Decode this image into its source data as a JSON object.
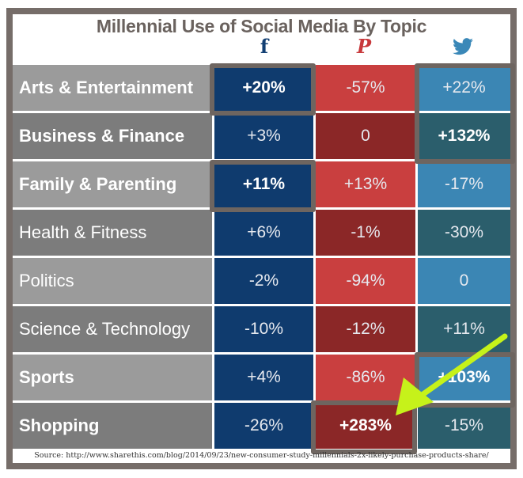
{
  "chart_data": {
    "type": "table",
    "title": "Millennial Use of Social Media By Topic",
    "columns": [
      {
        "name": "Facebook",
        "icon": "facebook-icon",
        "glyph": "f",
        "color": "#0f3b6e"
      },
      {
        "name": "Pinterest",
        "icon": "pinterest-icon",
        "glyph": "P",
        "color": "#c8393c"
      },
      {
        "name": "Twitter",
        "icon": "twitter-icon",
        "glyph": "🐦",
        "color": "#3a88b8"
      }
    ],
    "rows": [
      {
        "topic": "Arts & Entertainment",
        "values": [
          "+20%",
          "-57%",
          "+22%"
        ],
        "bold_label": true,
        "bold": [
          true,
          false,
          false
        ]
      },
      {
        "topic": "Business & Finance",
        "values": [
          "+3%",
          "0",
          "+132%"
        ],
        "bold_label": true,
        "bold": [
          false,
          false,
          true
        ]
      },
      {
        "topic": "Family & Parenting",
        "values": [
          "+11%",
          "+13%",
          "-17%"
        ],
        "bold_label": true,
        "bold": [
          true,
          false,
          false
        ]
      },
      {
        "topic": "Health & Fitness",
        "values": [
          "+6%",
          "-1%",
          "-30%"
        ],
        "bold_label": false,
        "bold": [
          false,
          false,
          false
        ]
      },
      {
        "topic": "Politics",
        "values": [
          "-2%",
          "-94%",
          "0"
        ],
        "bold_label": false,
        "bold": [
          false,
          false,
          false
        ]
      },
      {
        "topic": "Science & Technology",
        "values": [
          "-10%",
          "-12%",
          "+11%"
        ],
        "bold_label": false,
        "bold": [
          false,
          false,
          false
        ]
      },
      {
        "topic": "Sports",
        "values": [
          "+4%",
          "-86%",
          "+103%"
        ],
        "bold_label": true,
        "bold": [
          false,
          false,
          true
        ]
      },
      {
        "topic": "Shopping",
        "values": [
          "-26%",
          "+283%",
          "-15%"
        ],
        "bold_label": true,
        "bold": [
          false,
          true,
          false
        ]
      }
    ],
    "highlighted_value": "+283%",
    "source": "Source: http://www.sharethis.com/blog/2014/09/23/new-consumer-study-millennials-2x-likely-purchase-products-share/"
  },
  "colors": {
    "fb": "#0f3b6e",
    "pin_a": "#c93f3f",
    "pin_b": "#8b2727",
    "tw_a": "#3b86b4",
    "tw_b": "#2b5e6c",
    "label_a": "#9b9b9b",
    "label_b": "#7c7c7c",
    "arrow": "#c6f21a"
  }
}
